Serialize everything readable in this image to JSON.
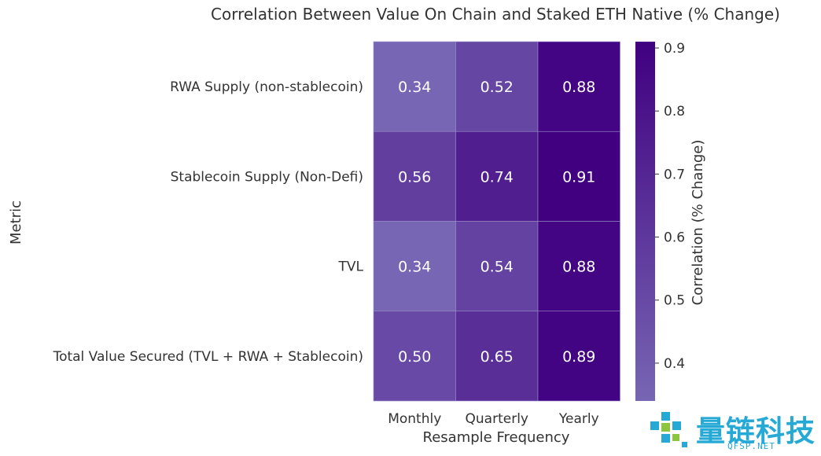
{
  "chart_data": {
    "type": "heatmap",
    "title": "Correlation Between Value On Chain and Staked ETH Native (% Change)",
    "xlabel": "Resample Frequency",
    "ylabel": "Metric",
    "columns": [
      "Monthly",
      "Quarterly",
      "Yearly"
    ],
    "rows": [
      "RWA Supply (non-stablecoin)",
      "Stablecoin Supply (Non-Defi)",
      "TVL",
      "Total Value Secured (TVL + RWA + Stablecoin)"
    ],
    "values": [
      [
        0.34,
        0.52,
        0.88
      ],
      [
        0.56,
        0.74,
        0.91
      ],
      [
        0.34,
        0.54,
        0.88
      ],
      [
        0.5,
        0.65,
        0.89
      ]
    ],
    "colorbar": {
      "label": "Correlation (% Change)",
      "range": [
        0.34,
        0.91
      ],
      "ticks": [
        0.4,
        0.5,
        0.6,
        0.7,
        0.8,
        0.9
      ],
      "tick_labels": [
        "0.4",
        "0.5",
        "0.6",
        "0.7",
        "0.8",
        "0.9"
      ],
      "color_low": "#7766b3",
      "color_high": "#400080"
    }
  },
  "watermark": {
    "text": "量链科技",
    "subtext": "QFSP.NET",
    "color": "#27a9d6"
  }
}
